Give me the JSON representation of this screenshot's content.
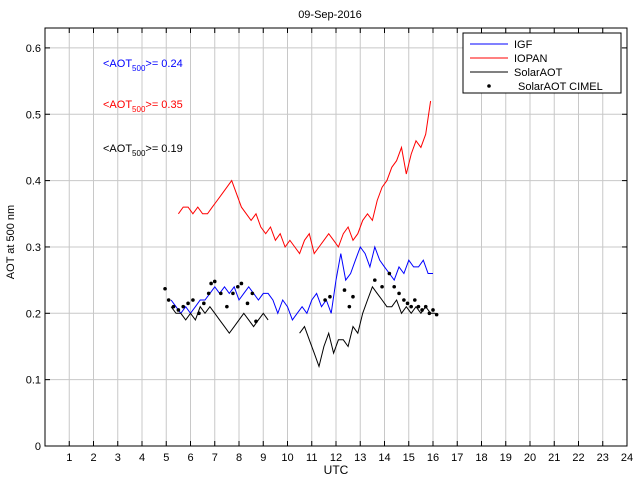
{
  "chart_data": {
    "type": "line",
    "title": "09-Sep-2016",
    "xlabel": "UTC",
    "ylabel": "AOT at 500 nm",
    "xlim": [
      0,
      24
    ],
    "ylim": [
      0,
      0.63
    ],
    "x_ticks": [
      1,
      2,
      3,
      4,
      5,
      6,
      7,
      8,
      9,
      10,
      11,
      12,
      13,
      14,
      15,
      16,
      17,
      18,
      19,
      20,
      21,
      22,
      23,
      24
    ],
    "y_ticks": [
      0,
      0.1,
      0.2,
      0.3,
      0.4,
      0.5,
      0.6
    ],
    "y_tick_labels": [
      "0",
      "0.1",
      "0.2",
      "0.3",
      "0.4",
      "0.5",
      "0.6"
    ],
    "grid": true,
    "legend_position": "top-right",
    "annotations": [
      {
        "prefix": "<AOT",
        "sub": "500",
        "suffix": ">= 0.24",
        "color": "#0000ff",
        "series": "IGF"
      },
      {
        "prefix": "<AOT",
        "sub": "500",
        "suffix": ">= 0.35",
        "color": "#ff0000",
        "series": "IOPAN"
      },
      {
        "prefix": "<AOT",
        "sub": "500",
        "suffix": ">= 0.19",
        "color": "#000000",
        "series": "SolarAOT"
      }
    ],
    "series": [
      {
        "name": "IGF",
        "color": "#0000ff",
        "style": "line",
        "x": [
          5.2,
          5.4,
          5.6,
          5.8,
          6.0,
          6.2,
          6.4,
          6.6,
          6.8,
          7.0,
          7.2,
          7.4,
          7.6,
          7.8,
          8.0,
          8.2,
          8.4,
          8.6,
          8.8,
          9.0,
          9.2,
          9.4,
          9.6,
          9.8,
          10.0,
          10.2,
          10.4,
          10.6,
          10.8,
          11.0,
          11.2,
          11.4,
          11.6,
          11.8,
          12.0,
          12.2,
          12.4,
          12.6,
          12.8,
          13.0,
          13.2,
          13.4,
          13.6,
          13.8,
          14.0,
          14.2,
          14.4,
          14.6,
          14.8,
          15.0,
          15.2,
          15.4,
          15.6,
          15.8,
          16.0
        ],
        "y": [
          0.22,
          0.21,
          0.2,
          0.21,
          0.2,
          0.21,
          0.22,
          0.22,
          0.23,
          0.24,
          0.23,
          0.24,
          0.23,
          0.24,
          0.22,
          0.23,
          0.24,
          0.23,
          0.22,
          0.23,
          0.23,
          0.22,
          0.2,
          0.22,
          0.21,
          0.19,
          0.2,
          0.21,
          0.2,
          0.22,
          0.23,
          0.21,
          0.22,
          0.2,
          0.25,
          0.29,
          0.25,
          0.26,
          0.28,
          0.3,
          0.29,
          0.27,
          0.3,
          0.28,
          0.27,
          0.26,
          0.25,
          0.27,
          0.26,
          0.28,
          0.27,
          0.27,
          0.28,
          0.26,
          0.26
        ]
      },
      {
        "name": "IOPAN",
        "color": "#ff0000",
        "style": "line",
        "x": [
          5.5,
          5.7,
          5.9,
          6.1,
          6.3,
          6.5,
          6.7,
          6.9,
          7.1,
          7.3,
          7.5,
          7.7,
          7.9,
          8.1,
          8.3,
          8.5,
          8.7,
          8.9,
          9.1,
          9.3,
          9.5,
          9.7,
          9.9,
          10.1,
          10.3,
          10.5,
          10.7,
          10.9,
          11.1,
          11.3,
          11.5,
          11.7,
          11.9,
          12.1,
          12.3,
          12.5,
          12.7,
          12.9,
          13.1,
          13.3,
          13.5,
          13.7,
          13.9,
          14.1,
          14.3,
          14.5,
          14.7,
          14.9,
          15.1,
          15.3,
          15.5,
          15.7,
          15.9
        ],
        "y": [
          0.35,
          0.36,
          0.36,
          0.35,
          0.36,
          0.35,
          0.35,
          0.36,
          0.37,
          0.38,
          0.39,
          0.4,
          0.38,
          0.36,
          0.35,
          0.34,
          0.35,
          0.33,
          0.32,
          0.33,
          0.31,
          0.32,
          0.3,
          0.31,
          0.3,
          0.29,
          0.31,
          0.32,
          0.29,
          0.3,
          0.31,
          0.32,
          0.31,
          0.3,
          0.32,
          0.33,
          0.31,
          0.32,
          0.34,
          0.35,
          0.34,
          0.37,
          0.39,
          0.4,
          0.42,
          0.43,
          0.45,
          0.41,
          0.44,
          0.46,
          0.45,
          0.47,
          0.52
        ]
      },
      {
        "name": "SolarAOT",
        "color": "#000000",
        "style": "line",
        "x": [
          5.2,
          5.4,
          5.6,
          5.8,
          6.0,
          6.2,
          6.4,
          6.6,
          6.8,
          7.0,
          7.2,
          7.4,
          7.6,
          7.8,
          8.0,
          8.2,
          8.4,
          8.6,
          8.8,
          9.0,
          9.2,
          10.5,
          10.7,
          10.9,
          11.1,
          11.3,
          11.5,
          11.7,
          11.9,
          12.1,
          12.3,
          12.5,
          12.7,
          12.9,
          13.1,
          13.3,
          13.5,
          13.7,
          13.9,
          14.1,
          14.3,
          14.5,
          14.7,
          14.9,
          15.1,
          15.3,
          15.5,
          15.7,
          15.9,
          16.1
        ],
        "y": [
          0.21,
          0.2,
          0.2,
          0.19,
          0.2,
          0.19,
          0.21,
          0.2,
          0.21,
          0.2,
          0.19,
          0.18,
          0.17,
          0.18,
          0.19,
          0.2,
          0.19,
          0.18,
          0.19,
          0.2,
          0.19,
          0.17,
          0.18,
          0.16,
          0.14,
          0.12,
          0.15,
          0.17,
          0.14,
          0.16,
          0.16,
          0.15,
          0.18,
          0.17,
          0.2,
          0.22,
          0.24,
          0.23,
          0.22,
          0.21,
          0.21,
          0.22,
          0.2,
          0.21,
          0.2,
          0.21,
          0.2,
          0.21,
          0.2,
          0.2
        ]
      },
      {
        "name": "SolarAOT CIMEL",
        "color": "#000000",
        "style": "points",
        "x": [
          4.95,
          5.1,
          5.3,
          5.5,
          5.7,
          5.9,
          6.1,
          6.35,
          6.55,
          6.75,
          6.85,
          7.0,
          7.25,
          7.5,
          7.75,
          7.95,
          8.1,
          8.35,
          8.55,
          8.7,
          11.55,
          11.75,
          12.35,
          12.55,
          12.7,
          13.6,
          13.9,
          14.2,
          14.4,
          14.6,
          14.8,
          14.95,
          15.1,
          15.25,
          15.4,
          15.55,
          15.7,
          15.85,
          16.0,
          16.15
        ],
        "y": [
          0.237,
          0.22,
          0.21,
          0.205,
          0.21,
          0.215,
          0.22,
          0.2,
          0.215,
          0.23,
          0.245,
          0.248,
          0.23,
          0.21,
          0.23,
          0.24,
          0.245,
          0.215,
          0.23,
          0.188,
          0.22,
          0.225,
          0.235,
          0.21,
          0.225,
          0.25,
          0.24,
          0.26,
          0.24,
          0.23,
          0.22,
          0.215,
          0.21,
          0.22,
          0.21,
          0.205,
          0.21,
          0.2,
          0.205,
          0.198
        ]
      }
    ]
  }
}
